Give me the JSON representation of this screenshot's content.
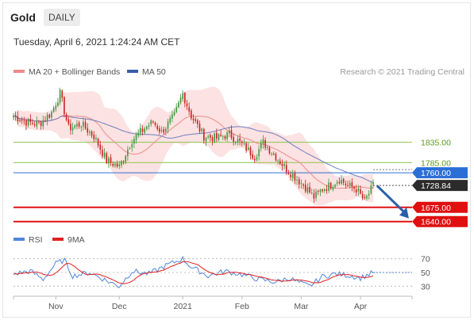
{
  "header": {
    "instrument": "Gold",
    "timeframe": "DAILY",
    "datetime": "Tuesday, April 6, 2021 1:24:24 AM CET"
  },
  "legend_main": [
    {
      "label": "MA 20 + Bollinger Bands",
      "color": "#f08a8a"
    },
    {
      "label": "MA 50",
      "color": "#3a5da8"
    }
  ],
  "credit": "Research © 2021 Trading Central",
  "legend_rsi": [
    {
      "label": "RSI",
      "color": "#4f86d9"
    },
    {
      "label": "9MA",
      "color": "#e02020"
    }
  ],
  "colors": {
    "up": "#3a9a3a",
    "down": "#c82020",
    "support": "#e01010",
    "pivot": "#2b6fd6",
    "resistance": "#8bc34a",
    "price": "#2b2b2b"
  },
  "chart_data": {
    "type": "candlestick",
    "ylim": [
      1620,
      1990
    ],
    "x_ticks": [
      "Nov",
      "Dec",
      "2021",
      "Feb",
      "Mar",
      "Apr"
    ],
    "levels": [
      {
        "label": "1835.00",
        "value": 1835,
        "kind": "resistance"
      },
      {
        "label": "1785.00",
        "value": 1785,
        "kind": "resistance"
      },
      {
        "label": "1760.00",
        "value": 1760,
        "kind": "pivot"
      },
      {
        "label": "1675.00",
        "value": 1675,
        "kind": "support"
      },
      {
        "label": "1640.00",
        "value": 1640,
        "kind": "support"
      }
    ],
    "last_price": {
      "label": "1728.84",
      "value": 1728.84
    },
    "forecast_arrow": {
      "from": 1728,
      "to": 1640
    },
    "close_anchors": [
      [
        0,
        1900
      ],
      [
        6,
        1885
      ],
      [
        12,
        1880
      ],
      [
        18,
        1908
      ],
      [
        22,
        1955
      ],
      [
        26,
        1870
      ],
      [
        32,
        1880
      ],
      [
        38,
        1850
      ],
      [
        44,
        1790
      ],
      [
        50,
        1775
      ],
      [
        56,
        1840
      ],
      [
        62,
        1870
      ],
      [
        66,
        1885
      ],
      [
        70,
        1860
      ],
      [
        76,
        1900
      ],
      [
        80,
        1955
      ],
      [
        84,
        1900
      ],
      [
        90,
        1850
      ],
      [
        96,
        1845
      ],
      [
        102,
        1855
      ],
      [
        108,
        1830
      ],
      [
        114,
        1800
      ],
      [
        118,
        1835
      ],
      [
        124,
        1800
      ],
      [
        128,
        1775
      ],
      [
        134,
        1745
      ],
      [
        138,
        1725
      ],
      [
        142,
        1700
      ],
      [
        146,
        1720
      ],
      [
        150,
        1730
      ],
      [
        154,
        1745
      ],
      [
        158,
        1728
      ],
      [
        162,
        1720
      ],
      [
        166,
        1690
      ],
      [
        170,
        1728
      ]
    ],
    "rsi_ticks": [
      70,
      50,
      30
    ],
    "rsi_ylim": [
      20,
      80
    ],
    "rsi_anchors": [
      [
        0,
        48
      ],
      [
        8,
        52
      ],
      [
        14,
        40
      ],
      [
        20,
        63
      ],
      [
        24,
        68
      ],
      [
        28,
        45
      ],
      [
        36,
        50
      ],
      [
        44,
        38
      ],
      [
        50,
        30
      ],
      [
        56,
        52
      ],
      [
        64,
        48
      ],
      [
        72,
        60
      ],
      [
        80,
        70
      ],
      [
        84,
        58
      ],
      [
        92,
        45
      ],
      [
        100,
        52
      ],
      [
        108,
        47
      ],
      [
        116,
        40
      ],
      [
        124,
        36
      ],
      [
        130,
        42
      ],
      [
        136,
        34
      ],
      [
        140,
        30
      ],
      [
        146,
        44
      ],
      [
        152,
        48
      ],
      [
        158,
        46
      ],
      [
        164,
        42
      ],
      [
        170,
        50
      ]
    ]
  }
}
